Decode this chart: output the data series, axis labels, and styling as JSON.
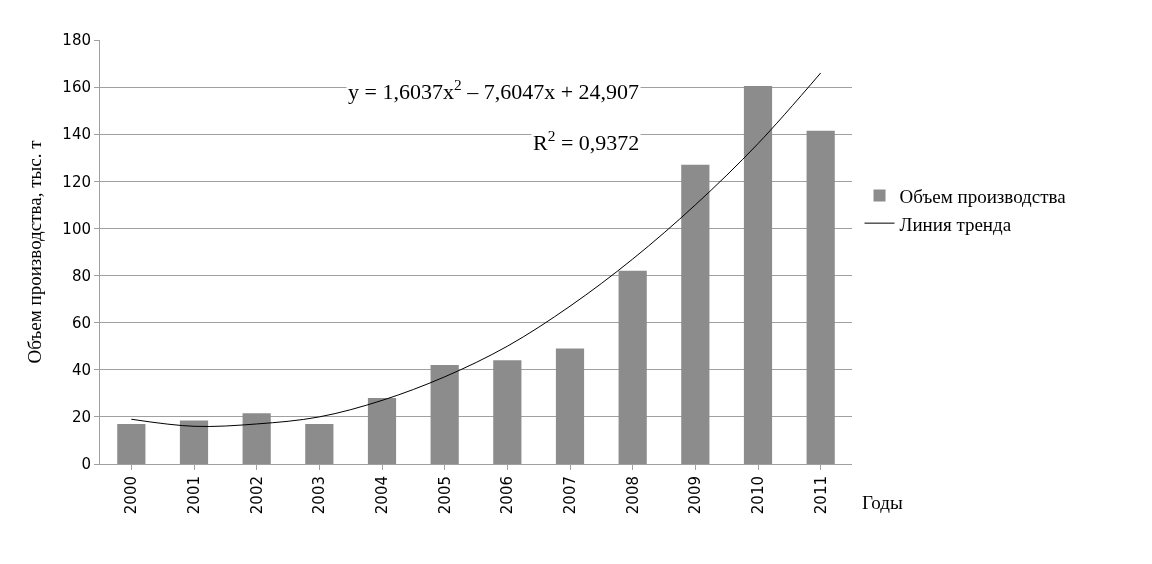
{
  "chart_data": {
    "type": "bar",
    "ylabel": "Объем производства, тыс. т",
    "xlabel": "Годы",
    "categories": [
      "2000",
      "2001",
      "2002",
      "2003",
      "2004",
      "2005",
      "2006",
      "2007",
      "2008",
      "2009",
      "2010",
      "2011"
    ],
    "series": [
      {
        "name": "Объем производства",
        "color": "#8c8c8c",
        "values": [
          17,
          18.5,
          21.5,
          17,
          28,
          42,
          44,
          49,
          82,
          127,
          160.5,
          141.5
        ]
      },
      {
        "name": "Линия тренда",
        "type": "line",
        "color": "#000000",
        "values": [
          19,
          16,
          17,
          20,
          27,
          37,
          50,
          67,
          87,
          110,
          136,
          166
        ]
      }
    ],
    "ylim": [
      0,
      180
    ],
    "yticks": [
      0,
      20,
      40,
      60,
      80,
      100,
      120,
      140,
      160,
      180
    ],
    "grid": "y",
    "legend": "right",
    "marker": "none",
    "line_style": "solid",
    "annotations": [
      "y = 1,6037x$^{2}$ – 7,6047x + 24,907",
      "R$^{2}$ = 0,9372"
    ]
  }
}
